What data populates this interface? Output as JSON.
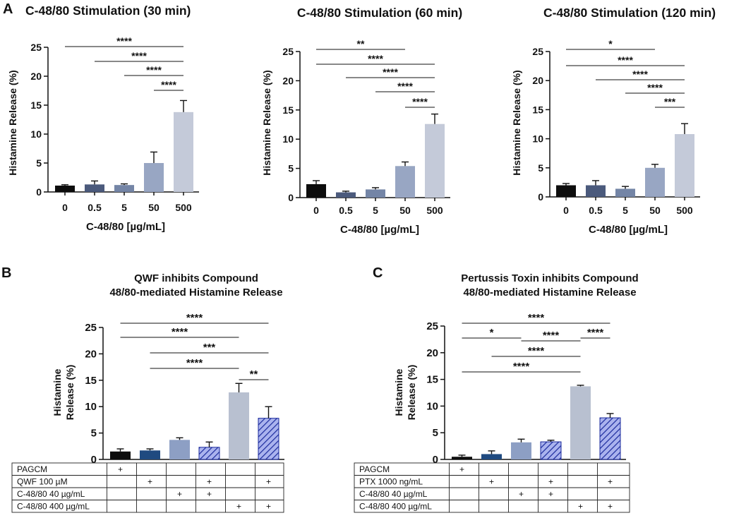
{
  "panel_labels": {
    "a": "A",
    "b": "B",
    "c": "C"
  },
  "chart_data": [
    {
      "id": "a30",
      "type": "bar",
      "title": "C-48/80 Stimulation (30 min)",
      "xlabel": "C-48/80 [µg/mL]",
      "ylabel": "Histamine Release (%)",
      "ylim": [
        0,
        25
      ],
      "yticks": [
        "0",
        "5",
        "10",
        "15",
        "20",
        "25"
      ],
      "categories": [
        "0",
        "0.5",
        "5",
        "50",
        "500"
      ],
      "values": [
        1.1,
        1.3,
        1.2,
        5.0,
        13.8
      ],
      "errors": [
        0.15,
        0.6,
        0.2,
        1.9,
        2.0
      ],
      "colors": [
        "#0d0d0d",
        "#4b5a7c",
        "#7485a6",
        "#98a6c3",
        "#c4cad9"
      ],
      "significance": [
        {
          "from": 0,
          "to": 4,
          "label": "****"
        },
        {
          "from": 1,
          "to": 4,
          "label": "****"
        },
        {
          "from": 2,
          "to": 4,
          "label": "****"
        },
        {
          "from": 3,
          "to": 4,
          "label": "****"
        }
      ]
    },
    {
      "id": "a60",
      "type": "bar",
      "title": "C-48/80 Stimulation (60 min)",
      "xlabel": "C-48/80 [µg/mL]",
      "ylabel": "Histamine Release (%)",
      "ylim": [
        0,
        25
      ],
      "yticks": [
        "0",
        "5",
        "10",
        "15",
        "20",
        "25"
      ],
      "categories": [
        "0",
        "0.5",
        "5",
        "50",
        "500"
      ],
      "values": [
        2.3,
        0.9,
        1.4,
        5.4,
        12.6
      ],
      "errors": [
        0.6,
        0.2,
        0.3,
        0.7,
        1.7
      ],
      "colors": [
        "#0d0d0d",
        "#4b5a7c",
        "#7485a6",
        "#98a6c3",
        "#c4cad9"
      ],
      "significance": [
        {
          "from": 0,
          "to": 3,
          "label": "**"
        },
        {
          "from": 0,
          "to": 4,
          "label": "****"
        },
        {
          "from": 1,
          "to": 4,
          "label": "****"
        },
        {
          "from": 2,
          "to": 4,
          "label": "****"
        },
        {
          "from": 3,
          "to": 4,
          "label": "****"
        }
      ]
    },
    {
      "id": "a120",
      "type": "bar",
      "title": "C-48/80 Stimulation (120 min)",
      "xlabel": "C-48/80 [µg/mL]",
      "ylabel": "Histamine Release (%)",
      "ylim": [
        0,
        25
      ],
      "yticks": [
        "0",
        "5",
        "10",
        "15",
        "20",
        "25"
      ],
      "categories": [
        "0",
        "0.5",
        "5",
        "50",
        "500"
      ],
      "values": [
        2.0,
        2.0,
        1.4,
        5.0,
        10.8
      ],
      "errors": [
        0.3,
        0.8,
        0.4,
        0.6,
        1.8
      ],
      "colors": [
        "#0d0d0d",
        "#4b5a7c",
        "#7485a6",
        "#98a6c3",
        "#c4cad9"
      ],
      "significance": [
        {
          "from": 0,
          "to": 3,
          "label": "*"
        },
        {
          "from": 0,
          "to": 4,
          "label": "****"
        },
        {
          "from": 1,
          "to": 4,
          "label": "****"
        },
        {
          "from": 2,
          "to": 4,
          "label": "****"
        },
        {
          "from": 3,
          "to": 4,
          "label": "***"
        }
      ]
    },
    {
      "id": "b",
      "type": "bar",
      "title": "QWF inhibits Compound",
      "subtitle": "48/80-mediated Histamine Release",
      "ylabel_lines": [
        "Histamine",
        "Release (%)"
      ],
      "ylim": [
        0,
        25
      ],
      "yticks": [
        "0",
        "5",
        "10",
        "15",
        "20",
        "25"
      ],
      "values": [
        1.5,
        1.7,
        3.7,
        2.3,
        12.7,
        7.8
      ],
      "errors": [
        0.5,
        0.3,
        0.4,
        1.0,
        1.7,
        2.2
      ],
      "colors": [
        "#0d0d0d",
        "#1f4a80",
        "#8d9fc4",
        "#a9b4ee",
        "#b8c0d0",
        "#a9b4ee"
      ],
      "hatched": [
        false,
        false,
        false,
        true,
        false,
        true
      ],
      "significance": [
        {
          "from": 0,
          "to": 5,
          "label": "****"
        },
        {
          "from": 0,
          "to": 4,
          "label": "****"
        },
        {
          "from": 1,
          "to": 5,
          "label": "***"
        },
        {
          "from": 1,
          "to": 4,
          "label": "****"
        },
        {
          "from": 4,
          "to": 5,
          "label": "**"
        }
      ],
      "table": [
        {
          "label": "PAGCM",
          "marks": [
            "+",
            "",
            "",
            "",
            "",
            ""
          ]
        },
        {
          "label": "QWF 100 µM",
          "marks": [
            "",
            "+",
            "",
            "+",
            "",
            "+"
          ]
        },
        {
          "label": "C-48/80 40 µg/mL",
          "marks": [
            "",
            "",
            "+",
            "+",
            "",
            ""
          ]
        },
        {
          "label": "C-48/80 400 µg/mL",
          "marks": [
            "",
            "",
            "",
            "",
            "+",
            "+"
          ]
        }
      ]
    },
    {
      "id": "c",
      "type": "bar",
      "title": "Pertussis Toxin inhibits Compound",
      "subtitle": "48/80-mediated Histamine Release",
      "ylabel_lines": [
        "Histamine",
        "Release (%)"
      ],
      "ylim": [
        0,
        25
      ],
      "yticks": [
        "0",
        "5",
        "10",
        "15",
        "20",
        "25"
      ],
      "values": [
        0.5,
        1.0,
        3.2,
        3.3,
        13.7,
        7.8
      ],
      "errors": [
        0.3,
        0.6,
        0.6,
        0.3,
        0.2,
        0.8
      ],
      "colors": [
        "#0d0d0d",
        "#1f4a80",
        "#8d9fc4",
        "#a9b4ee",
        "#b8c0d0",
        "#a9b4ee"
      ],
      "hatched": [
        false,
        false,
        false,
        true,
        false,
        true
      ],
      "significance": [
        {
          "from": 0,
          "to": 5,
          "label": "****"
        },
        {
          "from": 0,
          "to": 2,
          "label": "*"
        },
        {
          "from": 2,
          "to": 4,
          "label": "****"
        },
        {
          "from": 4,
          "to": 5,
          "label": "****"
        },
        {
          "from": 1,
          "to": 4,
          "label": "****"
        },
        {
          "from": 0,
          "to": 4,
          "label": "****"
        }
      ],
      "table": [
        {
          "label": "PAGCM",
          "marks": [
            "+",
            "",
            "",
            "",
            "",
            ""
          ]
        },
        {
          "label": "PTX 1000 ng/mL",
          "marks": [
            "",
            "+",
            "",
            "+",
            "",
            "+"
          ]
        },
        {
          "label": "C-48/80 40 µg/mL",
          "marks": [
            "",
            "",
            "+",
            "+",
            "",
            ""
          ]
        },
        {
          "label": "C-48/80 400 µg/mL",
          "marks": [
            "",
            "",
            "",
            "",
            "+",
            "+"
          ]
        }
      ]
    }
  ]
}
